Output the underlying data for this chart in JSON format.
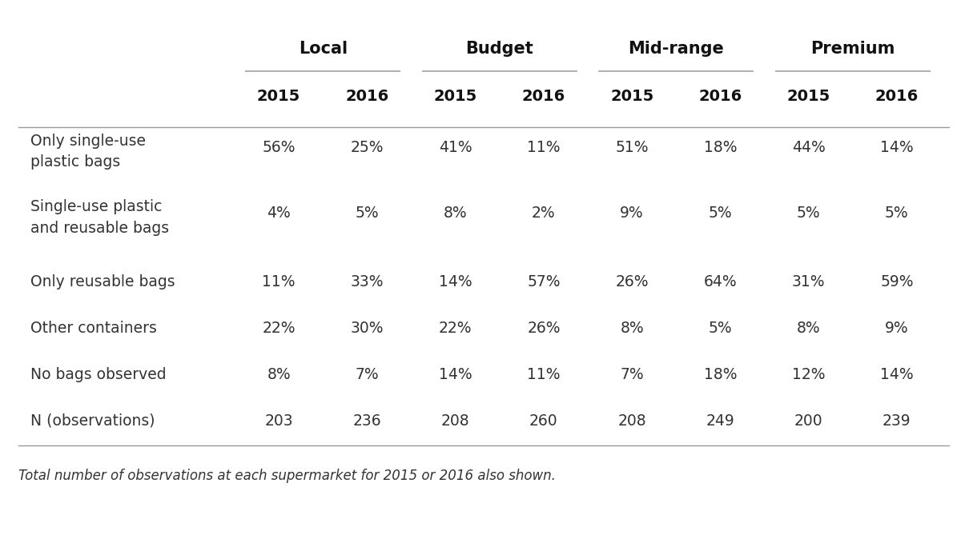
{
  "col_groups": [
    "Local",
    "Budget",
    "Mid-range",
    "Premium"
  ],
  "col_years": [
    "2015",
    "2016",
    "2015",
    "2016",
    "2015",
    "2016",
    "2015",
    "2016"
  ],
  "row_labels": [
    "Only single-use\nplastic bags",
    "Single-use plastic\nand reusable bags",
    "Only reusable bags",
    "Other containers",
    "No bags observed",
    "N (observations)"
  ],
  "data": [
    [
      "56%",
      "25%",
      "41%",
      "11%",
      "51%",
      "18%",
      "44%",
      "14%"
    ],
    [
      "4%",
      "5%",
      "8%",
      "2%",
      "9%",
      "5%",
      "5%",
      "5%"
    ],
    [
      "11%",
      "33%",
      "14%",
      "57%",
      "26%",
      "64%",
      "31%",
      "59%"
    ],
    [
      "22%",
      "30%",
      "22%",
      "26%",
      "8%",
      "5%",
      "8%",
      "9%"
    ],
    [
      "8%",
      "7%",
      "14%",
      "11%",
      "7%",
      "18%",
      "12%",
      "14%"
    ],
    [
      "203",
      "236",
      "208",
      "260",
      "208",
      "249",
      "200",
      "239"
    ]
  ],
  "row_is_tall": [
    true,
    true,
    false,
    false,
    false,
    false
  ],
  "footnote": "Total number of observations at each supermarket for 2015 or 2016 also shown.",
  "background_color": "#ffffff",
  "text_color": "#333333",
  "header_color": "#111111",
  "line_color": "#999999",
  "font_size_data": 13.5,
  "font_size_header": 14,
  "font_size_group": 15,
  "font_size_footnote": 12
}
